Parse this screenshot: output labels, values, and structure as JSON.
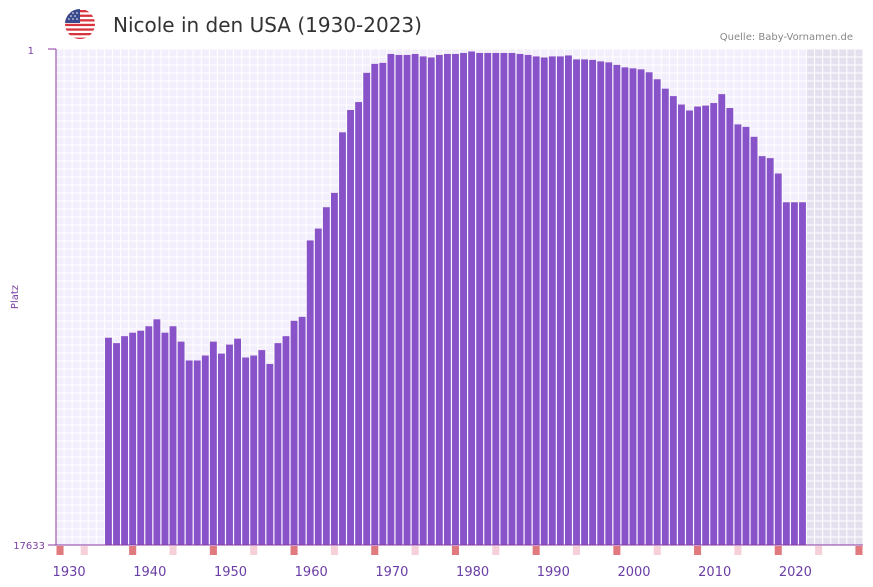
{
  "header": {
    "title": "Nicole in den USA (1930-2023)",
    "source": "Quelle: Baby-Vornamen.de",
    "flag_icon": "us-flag-icon"
  },
  "chart_data": {
    "type": "bar",
    "title": "Nicole in den USA (1930-2023)",
    "ylabel": "Platz",
    "xlabel": "",
    "y_top_label": "1",
    "y_bottom_label": "17633",
    "x_ticks": [
      "1930",
      "1940",
      "1950",
      "1960",
      "1970",
      "1980",
      "1990",
      "2000",
      "2010",
      "2020"
    ],
    "x_range": [
      1929,
      2029
    ],
    "shaded_future_from": 2022,
    "bar_color": "#8852c8",
    "series": [
      {
        "name": "Nicole",
        "start_year": 1935,
        "note": "values are bar height as fraction of the rank axis (1 = Platz 1, 0 = Platz 17633)",
        "values": [
          0.418,
          0.407,
          0.421,
          0.428,
          0.432,
          0.441,
          0.455,
          0.428,
          0.441,
          0.41,
          0.372,
          0.372,
          0.382,
          0.41,
          0.386,
          0.404,
          0.416,
          0.378,
          0.382,
          0.393,
          0.365,
          0.407,
          0.421,
          0.452,
          0.46,
          0.614,
          0.638,
          0.681,
          0.71,
          0.832,
          0.877,
          0.893,
          0.952,
          0.97,
          0.972,
          0.99,
          0.988,
          0.988,
          0.99,
          0.985,
          0.983,
          0.988,
          0.99,
          0.99,
          0.992,
          0.995,
          0.992,
          0.992,
          0.992,
          0.992,
          0.992,
          0.99,
          0.988,
          0.985,
          0.983,
          0.985,
          0.985,
          0.987,
          0.979,
          0.979,
          0.978,
          0.975,
          0.973,
          0.968,
          0.963,
          0.961,
          0.959,
          0.953,
          0.939,
          0.92,
          0.905,
          0.888,
          0.876,
          0.884,
          0.886,
          0.891,
          0.909,
          0.881,
          0.848,
          0.843,
          0.823,
          0.784,
          0.78,
          0.749,
          0.691,
          0.691,
          0.691
        ]
      }
    ],
    "bottom_markers": {
      "strong_years": [
        1929,
        1938,
        1948,
        1958,
        1968,
        1978,
        1988,
        1998,
        2008,
        2018,
        2028
      ],
      "light_years": [
        1932,
        1943,
        1953,
        1963,
        1973,
        1983,
        1993,
        2003,
        2013,
        2023
      ],
      "strong_color": "#e07a7e",
      "light_color": "#f6d0d8"
    }
  }
}
